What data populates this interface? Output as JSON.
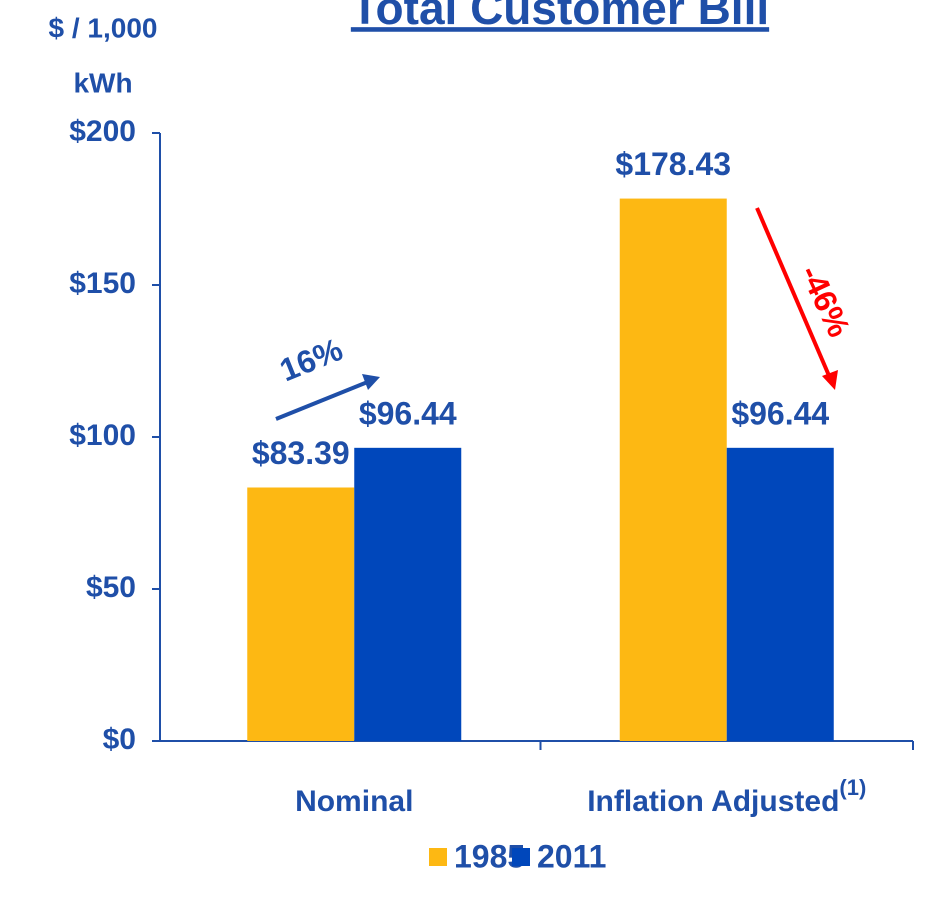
{
  "chart_data": {
    "type": "bar",
    "title": "Total Customer Bill",
    "ylabel_lines": [
      "$ / 1,000",
      "kWh"
    ],
    "categories": [
      "Nominal",
      "Inflation Adjusted"
    ],
    "category_notes": [
      null,
      "(1)"
    ],
    "series": [
      {
        "name": "1985",
        "color": "#fdb813",
        "values": [
          83.39,
          178.43
        ],
        "value_labels": [
          "$83.39",
          "$178.43"
        ]
      },
      {
        "name": "2011",
        "color": "#0047bb",
        "values": [
          96.44,
          96.44
        ],
        "value_labels": [
          "$96.44",
          "$96.44"
        ]
      }
    ],
    "ylim": [
      0,
      200
    ],
    "yticks": [
      {
        "value": 0,
        "label": "$0"
      },
      {
        "value": 50,
        "label": "$50"
      },
      {
        "value": 100,
        "label": "$100"
      },
      {
        "value": 150,
        "label": "$150"
      },
      {
        "value": 200,
        "label": "$200"
      }
    ],
    "annotations": [
      {
        "text": "16%",
        "color": "#1f4fa8"
      },
      {
        "text": "-46%",
        "color": "#ff0000"
      }
    ],
    "legend": "bottom"
  }
}
